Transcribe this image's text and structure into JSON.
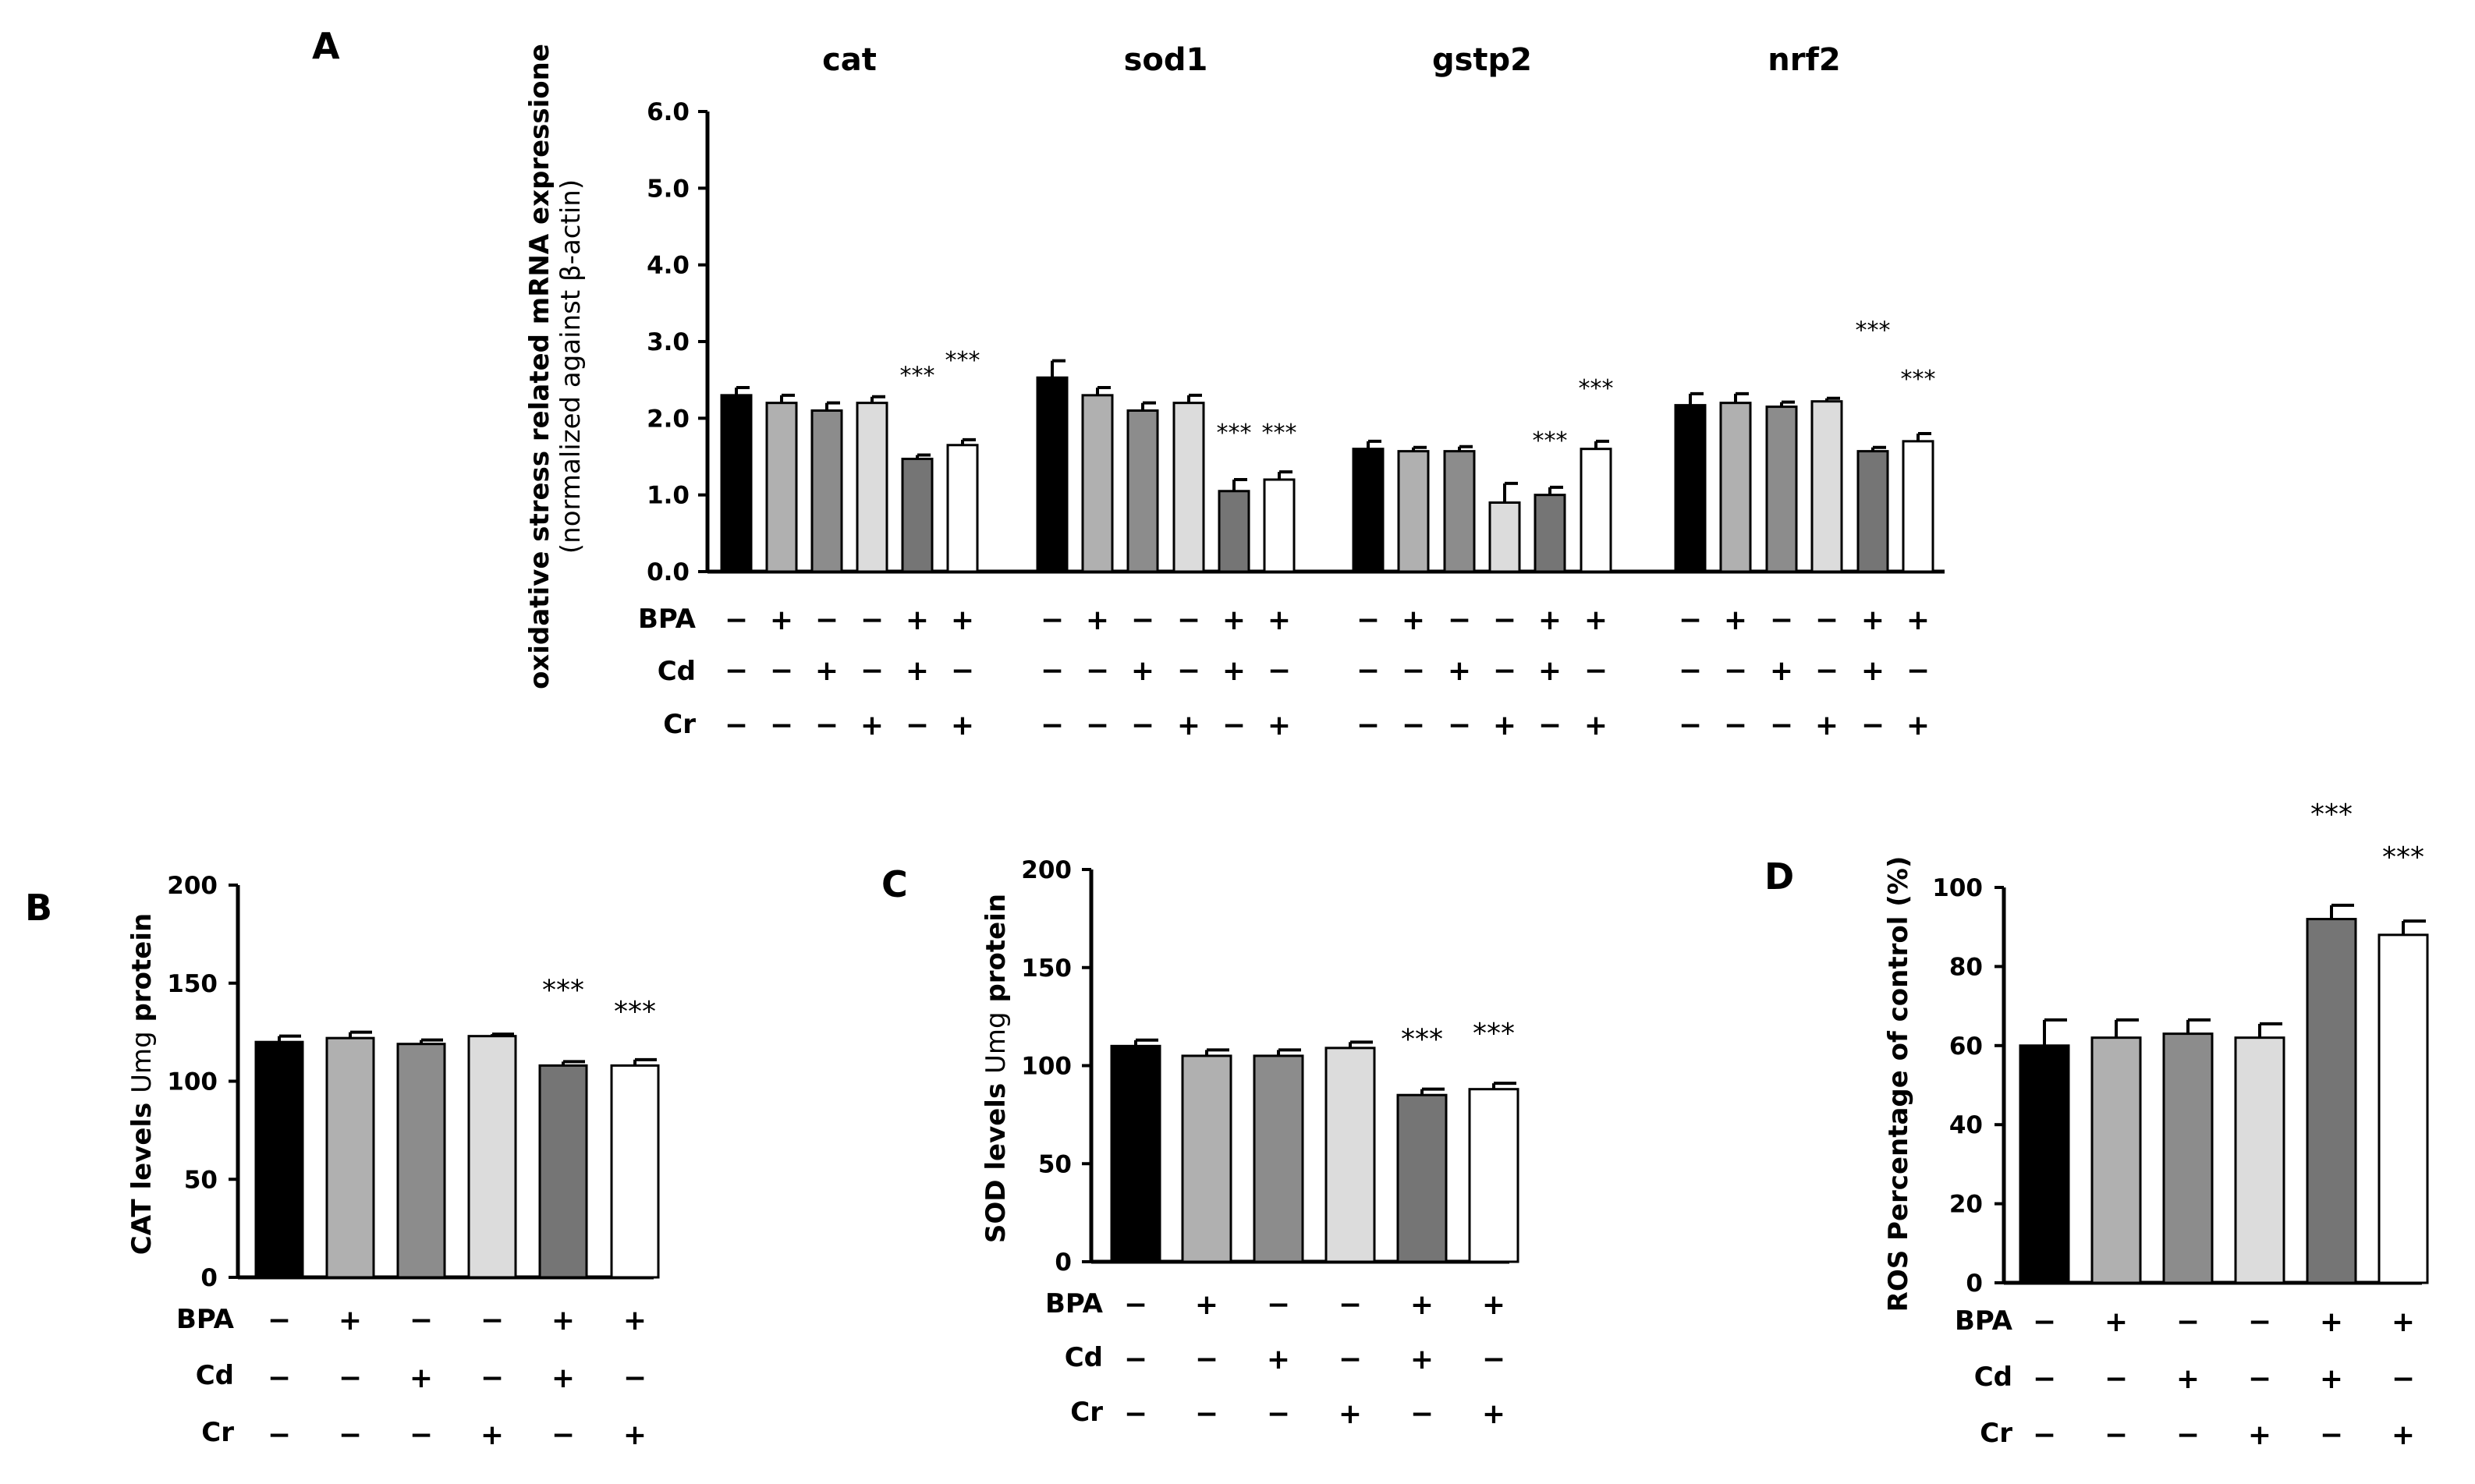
{
  "chart_data": [
    {
      "panel": "A",
      "type": "bar",
      "ylabel": "oxidative stress related mRNA expressione",
      "ylabel_line2": "(normalized against β-actin)",
      "ylim": [
        0,
        6.0
      ],
      "yticks": [
        "0.0",
        "1.0",
        "2.0",
        "3.0",
        "4.0",
        "5.0",
        "6.0"
      ],
      "groups": [
        {
          "title": "cat",
          "values": [
            2.3,
            2.2,
            2.1,
            2.2,
            1.47,
            1.65
          ],
          "errors": [
            0.1,
            0.1,
            0.1,
            0.08,
            0.05,
            0.07
          ],
          "sig": [
            "",
            "",
            "",
            "",
            "***",
            "***"
          ]
        },
        {
          "title": "sod1",
          "values": [
            2.53,
            2.3,
            2.1,
            2.2,
            1.05,
            1.2
          ],
          "errors": [
            0.22,
            0.1,
            0.1,
            0.1,
            0.15,
            0.1
          ],
          "sig": [
            "",
            "",
            "",
            "",
            "***",
            "***"
          ]
        },
        {
          "title": "gstp2",
          "values": [
            1.6,
            1.57,
            1.57,
            0.9,
            1.0,
            1.6
          ],
          "errors": [
            0.1,
            0.05,
            0.06,
            0.25,
            0.1,
            0.1
          ],
          "sig": [
            "",
            "",
            "",
            "",
            "***",
            "***"
          ]
        },
        {
          "title": "nrf2",
          "values": [
            2.17,
            2.2,
            2.15,
            2.22,
            1.57,
            1.7
          ],
          "errors": [
            0.15,
            0.12,
            0.06,
            0.04,
            0.05,
            0.1
          ],
          "sig": [
            "",
            "",
            "",
            "",
            "***",
            "***"
          ]
        }
      ],
      "conditions": {
        "BPA": [
          "−",
          "+",
          "−",
          "−",
          "+",
          "+"
        ],
        "Cd": [
          "−",
          "−",
          "+",
          "−",
          "+",
          "−"
        ],
        "Cr": [
          "−",
          "−",
          "−",
          "+",
          "−",
          "+"
        ]
      }
    },
    {
      "panel": "B",
      "type": "bar",
      "ylabel_bold": "CAT levels",
      "ylabel_normal": "Umg",
      "ylabel_bold2": "protein",
      "ylim": [
        0,
        200
      ],
      "yticks": [
        "0",
        "50",
        "100",
        "150",
        "200"
      ],
      "values": [
        120,
        122,
        119,
        123,
        108,
        108
      ],
      "errors": [
        3,
        3,
        2,
        1,
        2,
        3
      ],
      "sig": [
        "",
        "",
        "",
        "",
        "***",
        "***"
      ]
    },
    {
      "panel": "C",
      "type": "bar",
      "ylabel_bold": "SOD levels",
      "ylabel_normal": "Umg",
      "ylabel_bold2": "protein",
      "ylim": [
        0,
        200
      ],
      "yticks": [
        "0",
        "50",
        "100",
        "150",
        "200"
      ],
      "values": [
        110,
        105,
        105,
        109,
        85,
        88
      ],
      "errors": [
        3,
        3,
        3,
        3,
        3,
        3
      ],
      "sig": [
        "",
        "",
        "",
        "",
        "***",
        "***"
      ]
    },
    {
      "panel": "D",
      "type": "bar",
      "ylabel": "ROS Percentage of control (%)",
      "ylim": [
        0,
        100
      ],
      "yticks": [
        "0",
        "20",
        "40",
        "60",
        "80",
        "100"
      ],
      "values": [
        60,
        62,
        63,
        62,
        92,
        88
      ],
      "errors": [
        6.5,
        4.5,
        3.5,
        3.5,
        3.5,
        3.5
      ],
      "sig": [
        "",
        "",
        "",
        "",
        "***",
        "***"
      ]
    }
  ],
  "condition_labels": [
    "BPA",
    "Cd",
    "Cr"
  ],
  "bar_fills": [
    "#000000",
    "#b0b0b0",
    "#8c8c8c",
    "#dcdcdc",
    "#757575",
    "#ffffff"
  ]
}
